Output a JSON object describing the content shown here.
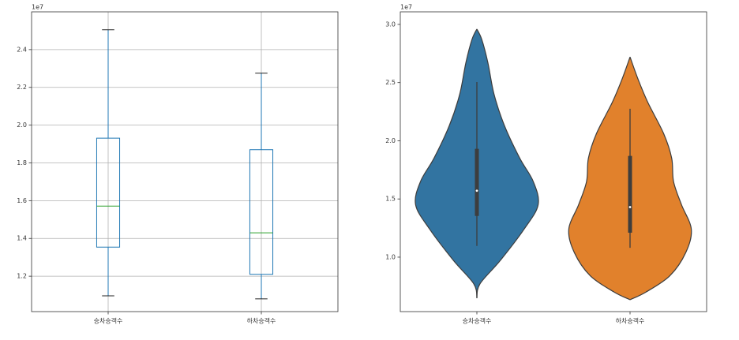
{
  "chart_data": [
    {
      "type": "box",
      "offset_text": "1e7",
      "categories": [
        "승차승객수",
        "하차승객수"
      ],
      "boxes": [
        {
          "whislo": 1.096,
          "q1": 1.354,
          "med": 1.571,
          "q3": 1.931,
          "whishi": 2.505
        },
        {
          "whislo": 1.08,
          "q1": 1.21,
          "med": 1.43,
          "q3": 1.87,
          "whishi": 2.275
        }
      ],
      "color": "#1f77b4",
      "median_color": "#2ca02c",
      "ylim": [
        1.0125,
        2.6
      ],
      "yticks": [
        1.2,
        1.4,
        1.6,
        1.8,
        {
          "value": 2.0,
          "label": "2.0"
        },
        2.2,
        2.4
      ],
      "grid": true
    },
    {
      "type": "violin",
      "offset_text": "1e7",
      "categories": [
        "승차승객수",
        "하차승객수"
      ],
      "violins": [
        {
          "color": "#3274a1",
          "density_y": [
            0.647,
            0.77,
            0.97,
            1.24,
            1.45,
            1.65,
            1.85,
            2.13,
            2.4,
            2.67,
            2.87,
            2.96
          ],
          "density": [
            0,
            0.05,
            0.38,
            0.77,
            1.0,
            0.92,
            0.7,
            0.45,
            0.28,
            0.18,
            0.08,
            0
          ],
          "whislo": 1.096,
          "q1": 1.354,
          "med": 1.571,
          "q3": 1.931,
          "whishi": 2.505
        },
        {
          "color": "#e1812c",
          "density_y": [
            0.634,
            0.7,
            0.84,
            1.04,
            1.24,
            1.45,
            1.65,
            1.85,
            2.06,
            2.33,
            2.53,
            2.72
          ],
          "density": [
            0,
            0.26,
            0.65,
            0.91,
            1.0,
            0.84,
            0.71,
            0.68,
            0.55,
            0.29,
            0.13,
            0
          ],
          "whislo": 1.08,
          "q1": 1.21,
          "med": 1.43,
          "q3": 1.87,
          "whishi": 2.275
        }
      ],
      "ylim": [
        0.532,
        3.108
      ],
      "yticks": [
        {
          "value": 1.0,
          "label": "1.0"
        },
        1.5,
        {
          "value": 2.0,
          "label": "2.0"
        },
        2.5,
        {
          "value": 3.0,
          "label": "3.0"
        }
      ],
      "grid": false
    }
  ]
}
